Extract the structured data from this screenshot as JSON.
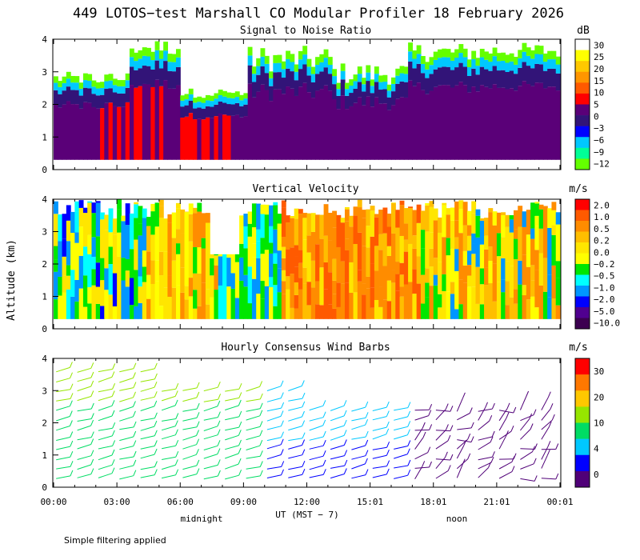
{
  "chart_data": {
    "type": "heatmap",
    "title": "449 LOTOS−test Marshall CO Modular Profiler 18 February 2026",
    "ylabel": "Altitude (km)",
    "xlabel": "UT  (MST − 7)",
    "x_tick_labels": [
      "00:00",
      "03:00",
      "06:00",
      "09:00",
      "12:00",
      "15:01",
      "18:01",
      "21:01",
      "00:01"
    ],
    "x_range_hours": [
      0,
      24
    ],
    "y_tick_labels": [
      "0",
      "1",
      "2",
      "3",
      "4"
    ],
    "y_range_km": [
      0,
      4
    ],
    "local_time_labels": [
      {
        "label": "midnight",
        "hour": 7
      },
      {
        "label": "noon",
        "hour": 19
      }
    ],
    "footnote": "Simple filtering applied",
    "panels": [
      {
        "title": "Signal to Noise Ratio",
        "unit": "dB",
        "colorbar_labels": [
          "30",
          "25",
          "20",
          "15",
          "10",
          "5",
          "0",
          "−3",
          "−6",
          "−9",
          "−12"
        ],
        "colorbar_colors": [
          "#ffffff",
          "#ffff00",
          "#ffc800",
          "#ff9600",
          "#ff5a00",
          "#ff0000",
          "#5a0078",
          "#321478",
          "#0000ff",
          "#00c8ff",
          "#00ff96",
          "#64ff00"
        ]
      },
      {
        "title": "Vertical Velocity",
        "unit": "m/s",
        "colorbar_labels": [
          "2.0",
          "1.0",
          "0.5",
          "0.2",
          "0.0",
          "−0.2",
          "−0.5",
          "−1.0",
          "−2.0",
          "−5.0",
          "−10.0"
        ],
        "colorbar_colors": [
          "#ff0000",
          "#ff5a00",
          "#ff8c00",
          "#ffbe00",
          "#ffe600",
          "#ffff00",
          "#00e600",
          "#00ffff",
          "#0096ff",
          "#0000ff",
          "#500090",
          "#3c0050"
        ]
      },
      {
        "title": "Hourly Consensus Wind Barbs",
        "unit": "m/s",
        "colorbar_labels": [
          "30",
          "20",
          "10",
          "4",
          "0"
        ],
        "colorbar_colors": [
          "#ff0000",
          "#ff7800",
          "#ffc800",
          "#96e600",
          "#00dc64",
          "#00c8ff",
          "#0000ff",
          "#500078"
        ]
      }
    ]
  }
}
